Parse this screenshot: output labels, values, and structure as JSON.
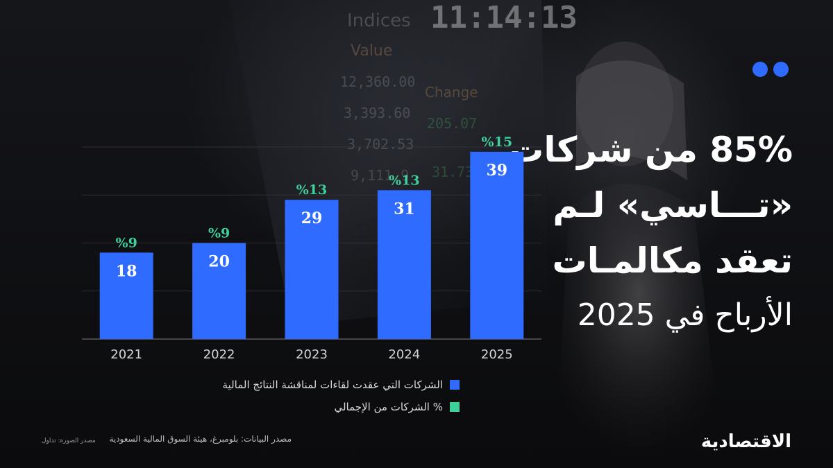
{
  "headline": {
    "lines": [
      "85% من شركات",
      "«تـــاسي» لـم",
      "تعقد مكالمـات",
      "الأرباح في 2025"
    ]
  },
  "background_text": {
    "clock": "11:14:13",
    "words": [
      "Indices",
      "Value",
      "Change"
    ],
    "numbers": [
      "12,360.00",
      "3,393.60",
      "3,702.53",
      "9,111.9",
      "205.07",
      "31.73"
    ]
  },
  "colors": {
    "bar": "#2f6bff",
    "pct": "#3ecf9a",
    "accent_dots": "#2f6bff",
    "axis": "#5a5a5f"
  },
  "chart_data": {
    "type": "bar",
    "categories": [
      "2021",
      "2022",
      "2023",
      "2024",
      "2025"
    ],
    "series": [
      {
        "name": "الشركات التي عقدت لقاءات لمناقشة النتائج المالية",
        "values": [
          18,
          20,
          29,
          31,
          39
        ]
      },
      {
        "name": "% الشركات من الإجمالي",
        "values": [
          9,
          9,
          13,
          13,
          15
        ],
        "labels": [
          "%9",
          "%9",
          "%13",
          "%13",
          "%15"
        ]
      }
    ],
    "ylim": [
      0,
      40
    ],
    "grid": true,
    "legend": "bottom"
  },
  "legend": {
    "items": [
      {
        "label": "الشركات التي عقدت لقاءات لمناقشة النتائج المالية",
        "color": "#2f6bff"
      },
      {
        "label": "% الشركات من الإجمالي",
        "color": "#3ecf9a"
      }
    ]
  },
  "footer": {
    "source": "مصدر البيانات: بلومبرغ، هيئة السوق المالية السعودية",
    "photo_credit": "مصدر الصورة: تداول",
    "logo": "الاقتصادية"
  }
}
